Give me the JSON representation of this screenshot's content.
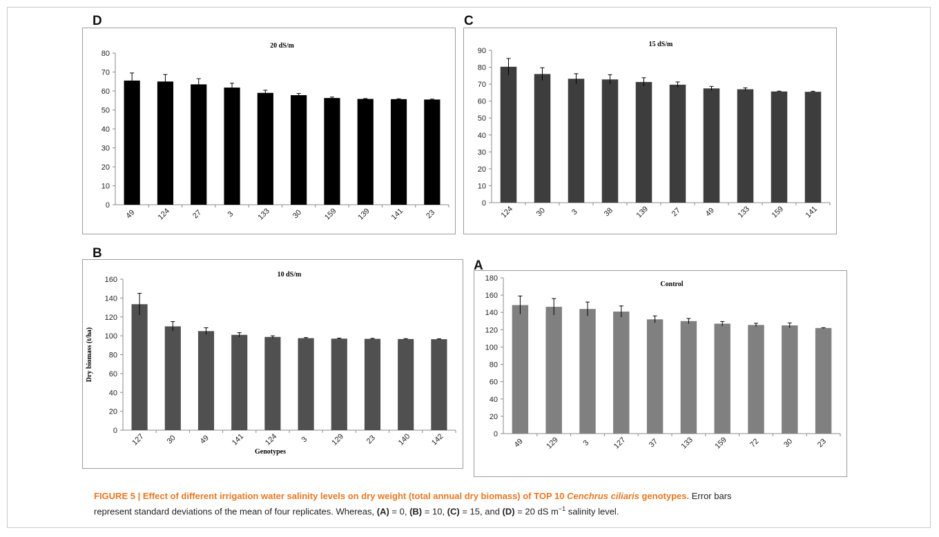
{
  "panels": {
    "D": {
      "letter": "D"
    },
    "C": {
      "letter": "C"
    },
    "B": {
      "letter": "B",
      "xlabel": "Genotypes"
    },
    "A": {
      "letter": "A"
    }
  },
  "chart_data": [
    {
      "id": "D",
      "type": "bar",
      "title": "20 dS/m",
      "xlabel": "",
      "ylabel": "",
      "ylim": [
        0,
        80
      ],
      "ystep": 10,
      "categories": [
        "49",
        "124",
        "27",
        "3",
        "133",
        "30",
        "159",
        "139",
        "141",
        "23"
      ],
      "values": [
        65.5,
        65.0,
        63.5,
        61.8,
        59.0,
        57.8,
        56.3,
        55.8,
        55.7,
        55.5
      ],
      "errors": [
        4.0,
        3.7,
        3.0,
        2.3,
        1.4,
        0.9,
        0.5,
        0.2,
        0.2,
        0.2
      ],
      "color": "#000000",
      "grid": false
    },
    {
      "id": "C",
      "type": "bar",
      "title": "15 dS/m",
      "xlabel": "",
      "ylabel": "",
      "ylim": [
        0,
        90
      ],
      "ystep": 10,
      "categories": [
        "124",
        "30",
        "3",
        "38",
        "139",
        "27",
        "49",
        "133",
        "159",
        "141"
      ],
      "values": [
        80.3,
        76.0,
        73.2,
        72.8,
        71.3,
        69.7,
        67.5,
        67.0,
        65.7,
        65.5
      ],
      "errors": [
        4.9,
        3.7,
        3.0,
        2.8,
        2.5,
        1.6,
        1.2,
        0.8,
        0.2,
        0.3
      ],
      "color": "#3d3d3d",
      "grid": false
    },
    {
      "id": "B",
      "type": "bar",
      "title": "10 dS/m",
      "xlabel": "Genotypes",
      "ylabel": "Dry biomass (t/ha)",
      "ylim": [
        0,
        160
      ],
      "ystep": 20,
      "categories": [
        "127",
        "30",
        "49",
        "141",
        "124",
        "3",
        "129",
        "23",
        "140",
        "142"
      ],
      "values": [
        133.5,
        110.0,
        105.0,
        101.0,
        98.8,
        97.5,
        97.0,
        96.8,
        96.6,
        96.4
      ],
      "errors": [
        11.5,
        5.0,
        3.5,
        2.3,
        1.2,
        0.6,
        0.5,
        0.5,
        0.4,
        0.4
      ],
      "color": "#505050",
      "grid": false
    },
    {
      "id": "A",
      "type": "bar",
      "title": "Control",
      "xlabel": "",
      "ylabel": "",
      "ylim": [
        0,
        180
      ],
      "ystep": 20,
      "categories": [
        "49",
        "129",
        "3",
        "127",
        "37",
        "133",
        "159",
        "72",
        "30",
        "23"
      ],
      "values": [
        148.5,
        146.5,
        144.0,
        141.0,
        132.0,
        130.0,
        127.0,
        125.5,
        125.0,
        122.0
      ],
      "errors": [
        10.5,
        9.5,
        8.0,
        6.5,
        4.0,
        3.0,
        2.5,
        2.0,
        2.8,
        0.4
      ],
      "color": "#808080",
      "grid": false
    }
  ],
  "caption": {
    "title": "FIGURE 5 | Effect of different irrigation water salinity levels on dry weight (total annual dry biomass) of TOP 10",
    "species": "Cenchrus ciliaris",
    "title_end": "genotypes.",
    "line1_rest": "Error bars",
    "line2_a": "represent standard deviations of the mean of four replicates. Whereas,",
    "label_A": "(A)",
    "eq_A": "= 0,",
    "label_B": "(B)",
    "eq_B": "= 10,",
    "label_C": "(C)",
    "eq_C": "= 15, and",
    "label_D": "(D)",
    "eq_D": "= 20 dS m",
    "superscript": "−1",
    "tail": "salinity level."
  }
}
